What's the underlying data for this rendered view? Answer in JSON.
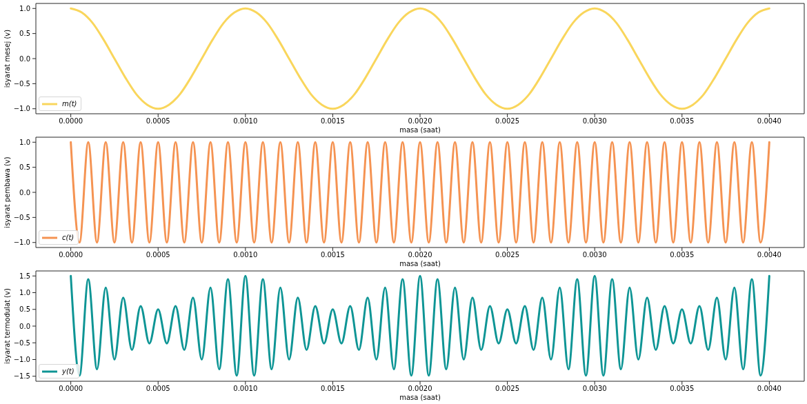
{
  "chart_data": [
    {
      "type": "line",
      "xlabel": "masa (saat)",
      "ylabel": "isyarat mesej (v)",
      "legend": "bottom left",
      "x": [
        0,
        6.25e-05,
        0.000125,
        0.0001875,
        0.00025,
        0.0003125,
        0.000375,
        0.0004375,
        0.0005,
        0.0005625,
        0.000625,
        0.0006875,
        0.00075,
        0.0008125,
        0.000875,
        0.0009375,
        0.001,
        0.0010625,
        0.001125,
        0.0011875,
        0.00125,
        0.0013125,
        0.001375,
        0.0014375,
        0.0015,
        0.0015625,
        0.001625,
        0.0016875,
        0.00175,
        0.0018125,
        0.001875,
        0.0019375,
        0.002,
        0.0020625,
        0.002125,
        0.0021875,
        0.00225,
        0.0023125,
        0.002375,
        0.0024375,
        0.0025,
        0.0025625,
        0.002625,
        0.0026875,
        0.00275,
        0.0028125,
        0.002875,
        0.0029375,
        0.003,
        0.0030625,
        0.003125,
        0.0031875,
        0.00325,
        0.0033125,
        0.003375,
        0.0034375,
        0.0035,
        0.0035625,
        0.003625,
        0.0036875,
        0.00375,
        0.0038125,
        0.003875,
        0.0039375,
        0.004
      ],
      "series": [
        {
          "name": "m(t)",
          "color": "#f9d65c",
          "values": [
            1,
            0.92,
            0.71,
            0.38,
            0,
            -0.38,
            -0.71,
            -0.92,
            -1,
            -0.92,
            -0.71,
            -0.38,
            0,
            0.38,
            0.71,
            0.92,
            1,
            0.92,
            0.71,
            0.38,
            0,
            -0.38,
            -0.71,
            -0.92,
            -1,
            -0.92,
            -0.71,
            -0.38,
            0,
            0.38,
            0.71,
            0.92,
            1,
            0.92,
            0.71,
            0.38,
            0,
            -0.38,
            -0.71,
            -0.92,
            -1,
            -0.92,
            -0.71,
            -0.38,
            0,
            0.38,
            0.71,
            0.92,
            1,
            0.92,
            0.71,
            0.38,
            0,
            -0.38,
            -0.71,
            -0.92,
            -1,
            -0.92,
            -0.71,
            -0.38,
            0,
            0.38,
            0.71,
            0.92,
            1
          ]
        }
      ],
      "xlim": [
        -0.0002,
        0.0042
      ],
      "ylim": [
        -1.1,
        1.1
      ],
      "xticks": [
        {
          "value": 0,
          "label": "0.0000"
        },
        {
          "value": 0.0005,
          "label": "0.0005"
        },
        {
          "value": 0.001,
          "label": "0.0010"
        },
        {
          "value": 0.0015,
          "label": "0.0015"
        },
        {
          "value": 0.002,
          "label": "0.0020"
        },
        {
          "value": 0.0025,
          "label": "0.0025"
        },
        {
          "value": 0.003,
          "label": "0.0030"
        },
        {
          "value": 0.0035,
          "label": "0.0035"
        },
        {
          "value": 0.004,
          "label": "0.0040"
        }
      ],
      "yticks": [
        {
          "value": -1,
          "label": "−1.0"
        },
        {
          "value": -0.5,
          "label": "−0.5"
        },
        {
          "value": 0,
          "label": "0.0"
        },
        {
          "value": 0.5,
          "label": "0.5"
        },
        {
          "value": 1,
          "label": "1.0"
        }
      ]
    },
    {
      "type": "line",
      "xlabel": "masa (saat)",
      "ylabel": "isyarat pembawa (v)",
      "legend": "bottom left",
      "x": [
        0,
        5e-05,
        0.0001,
        0.00015,
        0.0002,
        0.00025,
        0.0003,
        0.00035,
        0.0004,
        0.00045,
        0.0005,
        0.00055,
        0.0006,
        0.00065,
        0.0007,
        0.00075,
        0.0008,
        0.00085,
        0.0009,
        0.00095,
        0.001,
        0.00105,
        0.0011,
        0.00115,
        0.0012,
        0.00125,
        0.0013,
        0.00135,
        0.0014,
        0.00145,
        0.0015,
        0.00155,
        0.0016,
        0.00165,
        0.0017,
        0.00175,
        0.0018,
        0.00185,
        0.0019,
        0.00195,
        0.002,
        0.00205,
        0.0021,
        0.00215,
        0.0022,
        0.00225,
        0.0023,
        0.00235,
        0.0024,
        0.00245,
        0.0025,
        0.00255,
        0.0026,
        0.00265,
        0.0027,
        0.00275,
        0.0028,
        0.00285,
        0.0029,
        0.00295,
        0.003,
        0.00305,
        0.0031,
        0.00315,
        0.0032,
        0.00325,
        0.0033,
        0.00335,
        0.0034,
        0.00345,
        0.0035,
        0.00355,
        0.0036,
        0.00365,
        0.0037,
        0.00375,
        0.0038,
        0.00385,
        0.0039,
        0.00395,
        0.004
      ],
      "series": [
        {
          "name": "c(t)",
          "color": "#f59352",
          "values": [
            1,
            -1,
            1,
            -1,
            1,
            -1,
            1,
            -1,
            1,
            -1,
            1,
            -1,
            1,
            -1,
            1,
            -1,
            1,
            -1,
            1,
            -1,
            1,
            -1,
            1,
            -1,
            1,
            -1,
            1,
            -1,
            1,
            -1,
            1,
            -1,
            1,
            -1,
            1,
            -1,
            1,
            -1,
            1,
            -1,
            1,
            -1,
            1,
            -1,
            1,
            -1,
            1,
            -1,
            1,
            -1,
            1,
            -1,
            1,
            -1,
            1,
            -1,
            1,
            -1,
            1,
            -1,
            1,
            -1,
            1,
            -1,
            1,
            -1,
            1,
            -1,
            1,
            -1,
            1,
            -1,
            1,
            -1,
            1,
            -1,
            1,
            -1,
            1,
            -1,
            1
          ]
        }
      ],
      "xlim": [
        -0.0002,
        0.0042
      ],
      "ylim": [
        -1.1,
        1.1
      ],
      "xticks": [
        {
          "value": 0,
          "label": "0.0000"
        },
        {
          "value": 0.0005,
          "label": "0.0005"
        },
        {
          "value": 0.001,
          "label": "0.0010"
        },
        {
          "value": 0.0015,
          "label": "0.0015"
        },
        {
          "value": 0.002,
          "label": "0.0020"
        },
        {
          "value": 0.0025,
          "label": "0.0025"
        },
        {
          "value": 0.003,
          "label": "0.0030"
        },
        {
          "value": 0.0035,
          "label": "0.0035"
        },
        {
          "value": 0.004,
          "label": "0.0040"
        }
      ],
      "yticks": [
        {
          "value": -1,
          "label": "−1.0"
        },
        {
          "value": -0.5,
          "label": "−0.5"
        },
        {
          "value": 0,
          "label": "0.0"
        },
        {
          "value": 0.5,
          "label": "0.5"
        },
        {
          "value": 1,
          "label": "1.0"
        }
      ]
    },
    {
      "type": "line",
      "xlabel": "masa (saat)",
      "ylabel": "isyarat termodulat (v)",
      "legend": "bottom left",
      "x": [
        0,
        5e-05,
        0.0001,
        0.00015,
        0.0002,
        0.00025,
        0.0003,
        0.00035,
        0.0004,
        0.00045,
        0.0005,
        0.00055,
        0.0006,
        0.00065,
        0.0007,
        0.00075,
        0.0008,
        0.00085,
        0.0009,
        0.00095,
        0.001,
        0.00105,
        0.0011,
        0.00115,
        0.0012,
        0.00125,
        0.0013,
        0.00135,
        0.0014,
        0.00145,
        0.0015,
        0.00155,
        0.0016,
        0.00165,
        0.0017,
        0.00175,
        0.0018,
        0.00185,
        0.0019,
        0.00195,
        0.002,
        0.00205,
        0.0021,
        0.00215,
        0.0022,
        0.00225,
        0.0023,
        0.00235,
        0.0024,
        0.00245,
        0.0025,
        0.00255,
        0.0026,
        0.00265,
        0.0027,
        0.00275,
        0.0028,
        0.00285,
        0.0029,
        0.00295,
        0.003,
        0.00305,
        0.0031,
        0.00315,
        0.0032,
        0.00325,
        0.0033,
        0.00335,
        0.0034,
        0.00345,
        0.0035,
        0.00355,
        0.0036,
        0.00365,
        0.0037,
        0.00375,
        0.0038,
        0.00385,
        0.0039,
        0.00395,
        0.004
      ],
      "series": [
        {
          "name": "y(t)",
          "color": "#0e9595",
          "values": [
            1.5,
            -1.48,
            1.4,
            -1.29,
            1.15,
            -1,
            0.85,
            -0.71,
            0.6,
            -0.52,
            0.5,
            -0.52,
            0.6,
            -0.71,
            0.85,
            -1,
            1.15,
            -1.29,
            1.4,
            -1.48,
            1.5,
            -1.48,
            1.4,
            -1.29,
            1.15,
            -1,
            0.85,
            -0.71,
            0.6,
            -0.52,
            0.5,
            -0.52,
            0.6,
            -0.71,
            0.85,
            -1,
            1.15,
            -1.29,
            1.4,
            -1.48,
            1.5,
            -1.48,
            1.4,
            -1.29,
            1.15,
            -1,
            0.85,
            -0.71,
            0.6,
            -0.52,
            0.5,
            -0.52,
            0.6,
            -0.71,
            0.85,
            -1,
            1.15,
            -1.29,
            1.4,
            -1.48,
            1.5,
            -1.48,
            1.4,
            -1.29,
            1.15,
            -1,
            0.85,
            -0.71,
            0.6,
            -0.52,
            0.5,
            -0.52,
            0.6,
            -0.71,
            0.85,
            -1,
            1.15,
            -1.29,
            1.4,
            -1.48,
            1.5
          ]
        }
      ],
      "xlim": [
        -0.0002,
        0.0042
      ],
      "ylim": [
        -1.65,
        1.65
      ],
      "xticks": [
        {
          "value": 0,
          "label": "0.0000"
        },
        {
          "value": 0.0005,
          "label": "0.0005"
        },
        {
          "value": 0.001,
          "label": "0.0010"
        },
        {
          "value": 0.0015,
          "label": "0.0015"
        },
        {
          "value": 0.002,
          "label": "0.0020"
        },
        {
          "value": 0.0025,
          "label": "0.0025"
        },
        {
          "value": 0.003,
          "label": "0.0030"
        },
        {
          "value": 0.0035,
          "label": "0.0035"
        },
        {
          "value": 0.004,
          "label": "0.0040"
        }
      ],
      "yticks": [
        {
          "value": -1.5,
          "label": "−1.5"
        },
        {
          "value": -1,
          "label": "−1.0"
        },
        {
          "value": -0.5,
          "label": "−0.5"
        },
        {
          "value": 0,
          "label": "0.0"
        },
        {
          "value": 0.5,
          "label": "0.5"
        },
        {
          "value": 1,
          "label": "1.0"
        },
        {
          "value": 1.5,
          "label": "1.5"
        }
      ]
    }
  ]
}
